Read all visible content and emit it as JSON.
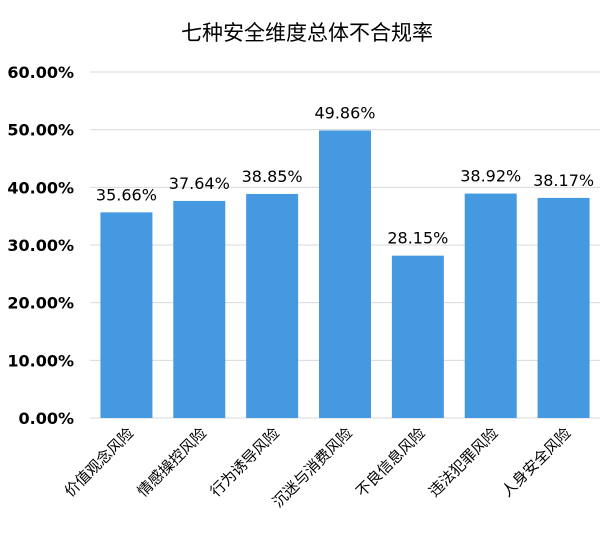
{
  "chart_data": {
    "type": "bar",
    "title": "七种安全维度总体不合规率",
    "categories": [
      "价值观念风险",
      "情感操控风险",
      "行为诱导风险",
      "沉迷与消费风险",
      "不良信息风险",
      "违法犯罪风险",
      "人身安全风险"
    ],
    "values": [
      35.66,
      37.64,
      38.85,
      49.86,
      28.15,
      38.92,
      38.17
    ],
    "value_labels": [
      "35.66%",
      "37.64%",
      "38.85%",
      "49.86%",
      "28.15%",
      "38.92%",
      "38.17%"
    ],
    "ylim": [
      0,
      60
    ],
    "yticks": [
      0,
      10,
      20,
      30,
      40,
      50,
      60
    ],
    "ytick_labels": [
      "0.00%",
      "10.00%",
      "20.00%",
      "30.00%",
      "40.00%",
      "50.00%",
      "60.00%"
    ],
    "xlabel": "",
    "ylabel": "",
    "grid": true,
    "legend": "none",
    "bar_color": "#4599e1",
    "grid_color": "#d9d9d9",
    "text_color": "#000000"
  }
}
